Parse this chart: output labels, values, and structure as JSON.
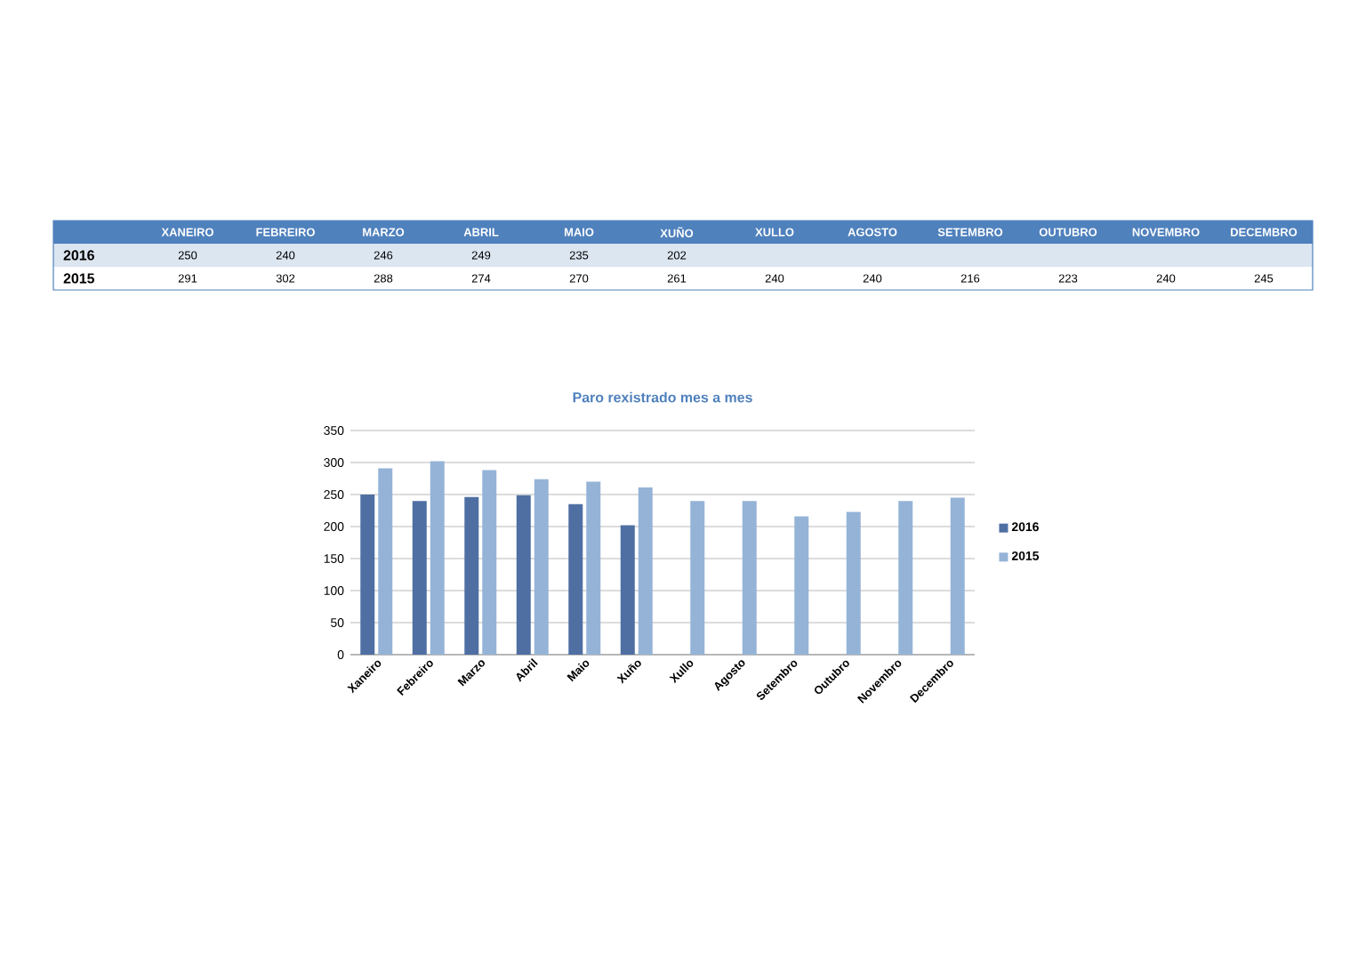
{
  "chart_data": [
    {
      "type": "heatmap",
      "categories": [
        "XANEIRO",
        "FEBREIRO",
        "MARZO",
        "ABRIL",
        "MAIO",
        "XUÑO",
        "XULLO",
        "AGOSTO",
        "SETEMBRO",
        "OUTUBRO",
        "NOVEMBRO",
        "DECEMBRO"
      ],
      "y_categories": [
        "2016",
        "2015"
      ],
      "cells": [
        [
          250,
          240,
          246,
          249,
          235,
          202,
          null,
          null,
          null,
          null,
          null,
          null
        ],
        [
          291,
          302,
          288,
          274,
          270,
          261,
          240,
          240,
          216,
          223,
          240,
          245
        ]
      ],
      "cell_labels": [
        [
          "250",
          "240",
          "246",
          "249",
          "235",
          "202",
          null,
          null,
          null,
          null,
          null,
          null
        ],
        [
          "291",
          "302",
          "288",
          "274",
          "270",
          "261",
          "240",
          "240",
          "216",
          "223",
          "240",
          "245"
        ]
      ]
    },
    {
      "type": "bar",
      "title": "Paro rexistrado mes a mes",
      "categories": [
        "Xaneiro",
        "Febreiro",
        "Marzo",
        "Abril",
        "Maio",
        "Xuño",
        "Xullo",
        "Agosto",
        "Setembro",
        "Outubro",
        "Novembro",
        "Decembro"
      ],
      "series": [
        {
          "name": "2016",
          "color": "#4f6fa3",
          "values": [
            250,
            240,
            246,
            249,
            235,
            202,
            null,
            null,
            null,
            null,
            null,
            null
          ]
        },
        {
          "name": "2015",
          "color": "#95b3d7",
          "values": [
            291,
            302,
            288,
            274,
            270,
            261,
            240,
            240,
            216,
            223,
            240,
            245
          ]
        }
      ],
      "ylim": [
        0,
        350
      ],
      "yticks": [
        0,
        50,
        100,
        150,
        200,
        250,
        300,
        350
      ],
      "grid": "y",
      "legend": "right"
    }
  ]
}
